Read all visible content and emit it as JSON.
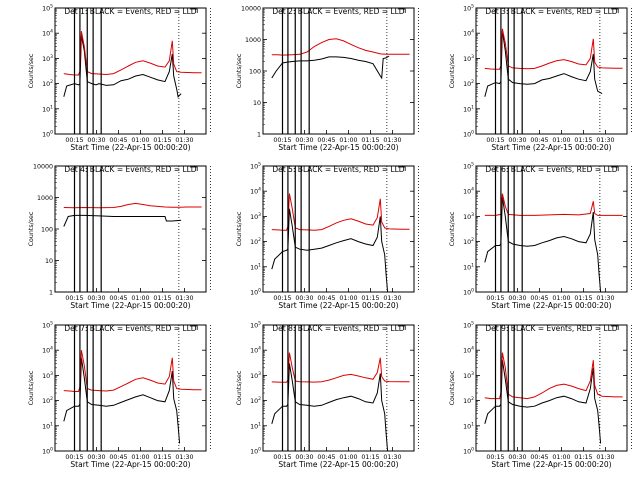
{
  "figure": {
    "series_colors": {
      "events": "#000000",
      "lld": "#dd0000"
    },
    "x_tick_labels": [
      "00:15",
      "00:30",
      "00:45",
      "01:00",
      "01:15",
      "01:30"
    ],
    "x_label": "Start Time (22-Apr-15 00:00:20)",
    "y_label": "Counts/sec"
  },
  "chart_data": [
    {
      "type": "line",
      "title": "Det 1: BLACK = Events, RED = LLD",
      "y_scale": "log",
      "ylim_exp": [
        0,
        5
      ],
      "y_tick_style": "pow",
      "xlim_min": [
        0,
        103
      ],
      "y_tick_labels": [
        "10^0",
        "10^1",
        "10^2",
        "10^3",
        "10^4",
        "10^5"
      ],
      "series": [
        {
          "key": "events",
          "x_min": [
            6,
            8,
            13.3,
            16,
            17,
            18,
            20,
            22,
            25,
            28,
            30,
            35,
            40,
            45,
            50,
            55,
            60,
            65,
            70,
            75,
            78,
            80,
            81,
            83,
            84,
            86
          ],
          "values": [
            30,
            80,
            100,
            90,
            95,
            8000,
            2000,
            120,
            100,
            90,
            100,
            85,
            90,
            130,
            150,
            200,
            230,
            180,
            140,
            120,
            300,
            1500,
            200,
            60,
            30,
            40
          ]
        },
        {
          "key": "lld",
          "x_min": [
            6,
            10,
            13.3,
            16,
            17,
            18,
            20,
            22,
            25,
            30,
            35,
            40,
            45,
            50,
            55,
            60,
            65,
            70,
            75,
            78,
            80,
            81,
            83,
            86,
            95,
            100
          ],
          "values": [
            250,
            230,
            220,
            220,
            300,
            12000,
            3000,
            300,
            250,
            240,
            230,
            250,
            350,
            500,
            700,
            800,
            650,
            500,
            450,
            800,
            5000,
            600,
            300,
            280,
            270,
            270
          ]
        }
      ]
    },
    {
      "type": "line",
      "title": "Det 2: BLACK = Events, RED = LLD",
      "y_scale": "log",
      "ylim_exp": [
        0,
        4
      ],
      "y_tick_style": "int",
      "xlim_min": [
        0,
        103
      ],
      "y_tick_labels": [
        "1",
        "10",
        "100",
        "1000",
        "10000"
      ],
      "series": [
        {
          "key": "events",
          "x_min": [
            6,
            9,
            13.3,
            16,
            20,
            25,
            30,
            35,
            40,
            45,
            50,
            55,
            60,
            65,
            70,
            75,
            80,
            81,
            82,
            84,
            86
          ],
          "values": [
            60,
            100,
            180,
            190,
            200,
            210,
            210,
            220,
            240,
            280,
            280,
            270,
            250,
            220,
            200,
            170,
            70,
            60,
            250,
            260,
            300
          ]
        },
        {
          "key": "lld",
          "x_min": [
            6,
            10,
            13.3,
            20,
            25,
            30,
            35,
            40,
            45,
            50,
            55,
            60,
            65,
            70,
            75,
            80,
            85,
            90,
            95,
            100
          ],
          "values": [
            330,
            330,
            320,
            330,
            340,
            400,
            600,
            800,
            1000,
            1050,
            900,
            700,
            550,
            450,
            400,
            350,
            340,
            340,
            340,
            340
          ]
        }
      ]
    },
    {
      "type": "line",
      "title": "Det 3: BLACK = Events, RED = LLD",
      "y_scale": "log",
      "ylim_exp": [
        0,
        5
      ],
      "y_tick_style": "pow",
      "xlim_min": [
        0,
        103
      ],
      "y_tick_labels": [
        "10^0",
        "10^1",
        "10^2",
        "10^3",
        "10^4",
        "10^5"
      ],
      "series": [
        {
          "key": "events",
          "x_min": [
            6,
            8,
            13.3,
            16,
            17,
            18,
            20,
            22,
            25,
            30,
            35,
            40,
            45,
            50,
            55,
            60,
            65,
            70,
            75,
            78,
            80,
            81,
            83,
            86
          ],
          "values": [
            30,
            80,
            110,
            100,
            120,
            12000,
            2000,
            150,
            110,
            100,
            95,
            100,
            140,
            160,
            200,
            250,
            190,
            150,
            130,
            300,
            1500,
            150,
            50,
            40
          ]
        },
        {
          "key": "lld",
          "x_min": [
            6,
            10,
            13.3,
            16,
            17,
            18,
            20,
            22,
            25,
            30,
            35,
            40,
            45,
            50,
            55,
            60,
            65,
            70,
            75,
            78,
            80,
            81,
            83,
            86,
            95,
            100
          ],
          "values": [
            400,
            380,
            370,
            370,
            500,
            15000,
            4000,
            500,
            420,
            400,
            390,
            400,
            500,
            650,
            800,
            900,
            750,
            600,
            550,
            1000,
            6000,
            700,
            450,
            420,
            410,
            410
          ]
        }
      ]
    },
    {
      "type": "line",
      "title": "Det 4: BLACK = Events, RED = LLD",
      "y_scale": "log",
      "ylim_exp": [
        0,
        4
      ],
      "y_tick_style": "int",
      "xlim_min": [
        0,
        103
      ],
      "y_tick_labels": [
        "1",
        "10",
        "100",
        "1000",
        "10000"
      ],
      "series": [
        {
          "key": "events",
          "x_min": [
            6,
            9,
            13.3,
            20,
            30,
            40,
            50,
            60,
            70,
            75,
            76,
            80,
            86
          ],
          "values": [
            120,
            250,
            270,
            270,
            260,
            250,
            250,
            250,
            250,
            250,
            180,
            180,
            190
          ]
        },
        {
          "key": "lld",
          "x_min": [
            6,
            13.3,
            20,
            30,
            40,
            45,
            50,
            55,
            60,
            65,
            70,
            75,
            80,
            85,
            90,
            100
          ],
          "values": [
            480,
            470,
            480,
            470,
            480,
            520,
            600,
            650,
            600,
            550,
            520,
            500,
            490,
            490,
            500,
            500
          ]
        }
      ]
    },
    {
      "type": "line",
      "title": "Det 5: BLACK = Events, RED = LLD",
      "y_scale": "log",
      "ylim_exp": [
        0,
        5
      ],
      "y_tick_style": "pow",
      "xlim_min": [
        0,
        103
      ],
      "y_tick_labels": [
        "10^0",
        "10^1",
        "10^2",
        "10^3",
        "10^4",
        "10^5"
      ],
      "series": [
        {
          "key": "events",
          "x_min": [
            6,
            8,
            13.3,
            16,
            17,
            18,
            20,
            22,
            25,
            30,
            35,
            40,
            45,
            50,
            55,
            60,
            65,
            70,
            75,
            78,
            80,
            81,
            83,
            84,
            85
          ],
          "values": [
            8,
            20,
            40,
            45,
            50,
            2000,
            400,
            60,
            50,
            45,
            50,
            55,
            70,
            90,
            110,
            130,
            100,
            80,
            70,
            150,
            1000,
            100,
            30,
            5,
            1
          ]
        },
        {
          "key": "lld",
          "x_min": [
            6,
            10,
            13.3,
            16,
            17,
            18,
            20,
            22,
            25,
            30,
            35,
            40,
            45,
            50,
            55,
            60,
            65,
            70,
            75,
            78,
            80,
            81,
            83,
            86,
            95,
            100
          ],
          "values": [
            300,
            290,
            280,
            280,
            400,
            8000,
            2000,
            350,
            300,
            290,
            280,
            300,
            400,
            550,
            700,
            800,
            650,
            500,
            450,
            900,
            5000,
            600,
            350,
            320,
            310,
            310
          ]
        }
      ]
    },
    {
      "type": "line",
      "title": "Det 6: BLACK = Events, RED = LLD",
      "y_scale": "log",
      "ylim_exp": [
        0,
        5
      ],
      "y_tick_style": "pow",
      "xlim_min": [
        0,
        103
      ],
      "y_tick_labels": [
        "10^0",
        "10^1",
        "10^2",
        "10^3",
        "10^4",
        "10^5"
      ],
      "series": [
        {
          "key": "events",
          "x_min": [
            6,
            8,
            13.3,
            16,
            17,
            18,
            20,
            22,
            25,
            30,
            35,
            40,
            45,
            50,
            55,
            60,
            65,
            70,
            75,
            78,
            80,
            81,
            83,
            84,
            85
          ],
          "values": [
            15,
            40,
            70,
            70,
            80,
            6000,
            1000,
            100,
            80,
            70,
            65,
            70,
            90,
            110,
            140,
            160,
            130,
            100,
            90,
            200,
            1500,
            120,
            30,
            5,
            1
          ]
        },
        {
          "key": "lld",
          "x_min": [
            6,
            10,
            13.3,
            17,
            18,
            20,
            22,
            30,
            40,
            50,
            60,
            70,
            78,
            80,
            81,
            83,
            90,
            100
          ],
          "values": [
            1100,
            1100,
            1100,
            1200,
            8000,
            2500,
            1200,
            1100,
            1100,
            1150,
            1200,
            1150,
            1300,
            4000,
            1300,
            1100,
            1100,
            1100
          ]
        }
      ]
    },
    {
      "type": "line",
      "title": "Det 7: BLACK = Events, RED = LLD",
      "y_scale": "log",
      "ylim_exp": [
        0,
        5
      ],
      "y_tick_style": "pow",
      "xlim_min": [
        0,
        103
      ],
      "y_tick_labels": [
        "10^0",
        "10^1",
        "10^2",
        "10^3",
        "10^4",
        "10^5"
      ],
      "series": [
        {
          "key": "events",
          "x_min": [
            6,
            8,
            13.3,
            16,
            17,
            18,
            20,
            22,
            25,
            30,
            35,
            40,
            45,
            50,
            55,
            60,
            65,
            70,
            75,
            78,
            80,
            81,
            83,
            84,
            85
          ],
          "values": [
            15,
            40,
            60,
            60,
            70,
            5000,
            800,
            90,
            70,
            65,
            60,
            65,
            85,
            110,
            140,
            170,
            130,
            100,
            90,
            250,
            1500,
            120,
            40,
            10,
            2
          ]
        },
        {
          "key": "lld",
          "x_min": [
            6,
            10,
            13.3,
            16,
            17,
            18,
            20,
            22,
            25,
            30,
            35,
            40,
            45,
            50,
            55,
            60,
            65,
            70,
            75,
            78,
            80,
            81,
            83,
            86,
            95,
            100
          ],
          "values": [
            250,
            240,
            230,
            230,
            350,
            10000,
            2500,
            300,
            260,
            250,
            240,
            260,
            360,
            500,
            700,
            800,
            650,
            500,
            450,
            900,
            5000,
            600,
            300,
            280,
            270,
            270
          ]
        }
      ]
    },
    {
      "type": "line",
      "title": "Det 8: BLACK = Events, RED = LLD",
      "y_scale": "log",
      "ylim_exp": [
        0,
        5
      ],
      "y_tick_style": "pow",
      "xlim_min": [
        0,
        103
      ],
      "y_tick_labels": [
        "10^0",
        "10^1",
        "10^2",
        "10^3",
        "10^4",
        "10^5"
      ],
      "series": [
        {
          "key": "events",
          "x_min": [
            6,
            8,
            13.3,
            16,
            17,
            18,
            20,
            22,
            25,
            30,
            35,
            40,
            45,
            50,
            55,
            60,
            65,
            70,
            75,
            78,
            80,
            81,
            83,
            84,
            85
          ],
          "values": [
            12,
            30,
            60,
            60,
            70,
            3000,
            600,
            90,
            70,
            65,
            60,
            65,
            85,
            110,
            130,
            150,
            120,
            90,
            80,
            200,
            1200,
            100,
            30,
            5,
            1
          ]
        },
        {
          "key": "lld",
          "x_min": [
            6,
            10,
            13.3,
            16,
            17,
            18,
            20,
            22,
            25,
            30,
            35,
            40,
            45,
            50,
            55,
            60,
            65,
            70,
            75,
            78,
            80,
            81,
            83,
            86,
            95,
            100
          ],
          "values": [
            550,
            540,
            530,
            530,
            650,
            8000,
            2000,
            600,
            560,
            550,
            540,
            560,
            650,
            800,
            1000,
            1100,
            950,
            800,
            700,
            1300,
            5000,
            900,
            600,
            570,
            560,
            560
          ]
        }
      ]
    },
    {
      "type": "line",
      "title": "Det 9: BLACK = Events, RED = LLD",
      "y_scale": "log",
      "ylim_exp": [
        0,
        5
      ],
      "y_tick_style": "pow",
      "xlim_min": [
        0,
        103
      ],
      "y_tick_labels": [
        "10^0",
        "10^1",
        "10^2",
        "10^3",
        "10^4",
        "10^5"
      ],
      "series": [
        {
          "key": "events",
          "x_min": [
            6,
            8,
            13.3,
            16,
            17,
            18,
            20,
            22,
            25,
            30,
            35,
            40,
            45,
            50,
            55,
            60,
            65,
            70,
            75,
            78,
            80,
            81,
            83,
            84,
            85
          ],
          "values": [
            12,
            30,
            60,
            60,
            70,
            4000,
            700,
            90,
            70,
            60,
            55,
            60,
            80,
            100,
            130,
            150,
            120,
            90,
            80,
            300,
            2000,
            120,
            40,
            10,
            2
          ]
        },
        {
          "key": "lld",
          "x_min": [
            6,
            10,
            13.3,
            16,
            17,
            18,
            20,
            22,
            25,
            30,
            35,
            40,
            45,
            50,
            55,
            60,
            65,
            70,
            75,
            78,
            80,
            81,
            83,
            86,
            95,
            100
          ],
          "values": [
            130,
            120,
            120,
            120,
            200,
            8000,
            2000,
            180,
            140,
            130,
            120,
            140,
            200,
            300,
            400,
            450,
            380,
            300,
            250,
            600,
            4000,
            400,
            180,
            150,
            140,
            140
          ]
        }
      ]
    }
  ]
}
